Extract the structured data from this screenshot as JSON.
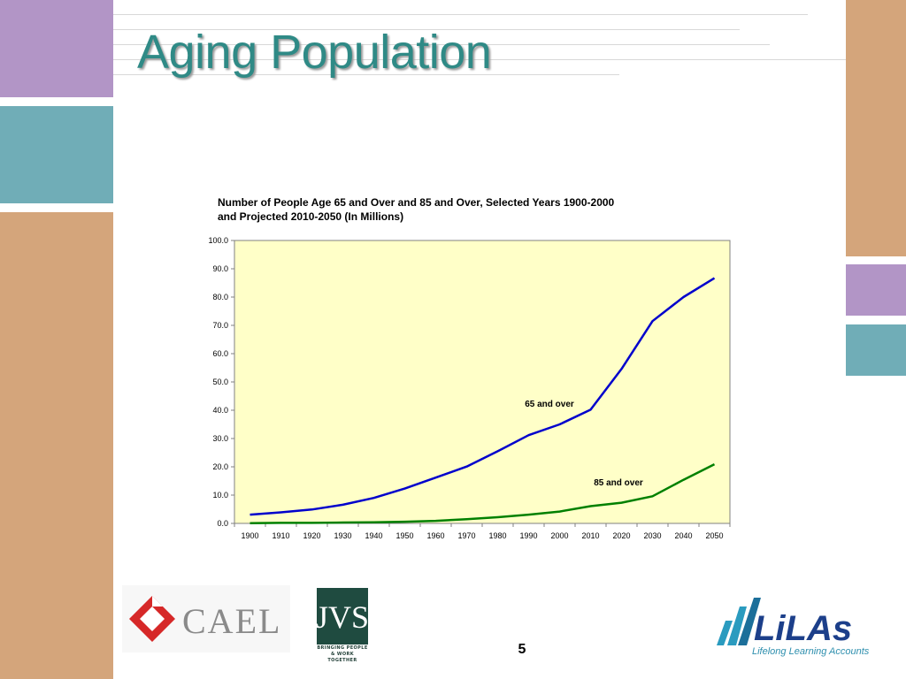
{
  "slide": {
    "title": "Aging Population",
    "page_number": "5",
    "colors": {
      "purple": "#b295c6",
      "teal": "#70adb7",
      "tan": "#d4a57b",
      "title": "#2f8a86",
      "plot_bg": "#ffffc8"
    }
  },
  "logos": {
    "cael": {
      "text": "CAEL",
      "colors": [
        "#d62828",
        "#8a8a8a"
      ]
    },
    "jvs": {
      "text": "JVS",
      "tagline_1": "BRINGING PEOPLE",
      "tagline_2": "& WORK TOGETHER",
      "color": "#1f4b40"
    },
    "lilas": {
      "text": "LiLAs",
      "tagline": "Lifelong Learning Accounts",
      "color": "#1c3f8a",
      "accent": "#2a9bbf"
    }
  },
  "chart_data": {
    "type": "line",
    "title": "Number of People Age 65 and Over and 85 and Over, Selected Years 1900-2000 and Projected 2010-2050 (In Millions)",
    "title_line_1": "Number of People Age 65 and Over and 85 and Over, Selected Years 1900-2000",
    "title_line_2": "and Projected 2010-2050 (In Millions)",
    "x": [
      1900,
      1910,
      1920,
      1930,
      1940,
      1950,
      1960,
      1970,
      1980,
      1990,
      2000,
      2010,
      2020,
      2030,
      2040,
      2050
    ],
    "ylim": [
      0,
      100
    ],
    "yticks": [
      "0.0",
      "10.0",
      "20.0",
      "30.0",
      "40.0",
      "50.0",
      "60.0",
      "70.0",
      "80.0",
      "90.0",
      "100.0"
    ],
    "grid": false,
    "series": [
      {
        "name": "65 and over",
        "color": "#0000cc",
        "values": [
          3.1,
          3.9,
          4.9,
          6.6,
          9.0,
          12.3,
          16.2,
          20.1,
          25.5,
          31.2,
          35.0,
          40.2,
          54.6,
          71.5,
          80.0,
          86.7
        ]
      },
      {
        "name": "85 and over",
        "color": "#008000",
        "values": [
          0.1,
          0.2,
          0.2,
          0.3,
          0.4,
          0.6,
          0.9,
          1.5,
          2.2,
          3.1,
          4.2,
          6.1,
          7.3,
          9.6,
          15.4,
          20.9
        ]
      }
    ]
  }
}
